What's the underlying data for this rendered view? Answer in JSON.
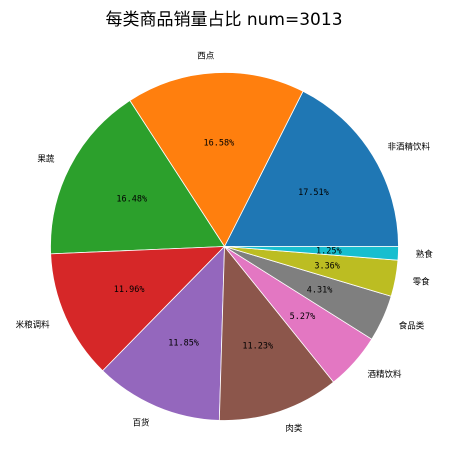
{
  "chart_data": {
    "type": "pie",
    "title": "每类商品销量占比  num=3013",
    "start_angle_deg": 0,
    "direction": "counterclockwise",
    "slices": [
      {
        "label": "非酒精饮料",
        "value": 17.51,
        "pct_text": "17.51%",
        "color": "#1f77b4"
      },
      {
        "label": "西点",
        "value": 16.58,
        "pct_text": "16.58%",
        "color": "#ff7f0e"
      },
      {
        "label": "果蔬",
        "value": 16.48,
        "pct_text": "16.48%",
        "color": "#2ca02c"
      },
      {
        "label": "米粮调料",
        "value": 11.96,
        "pct_text": "11.96%",
        "color": "#d62728"
      },
      {
        "label": "百货",
        "value": 11.85,
        "pct_text": "11.85%",
        "color": "#9467bd"
      },
      {
        "label": "肉类",
        "value": 11.23,
        "pct_text": "11.23%",
        "color": "#8c564b"
      },
      {
        "label": "酒精饮料",
        "value": 5.27,
        "pct_text": "5.27%",
        "color": "#e377c2"
      },
      {
        "label": "食品类",
        "value": 4.31,
        "pct_text": "4.31%",
        "color": "#7f7f7f"
      },
      {
        "label": "零食",
        "value": 3.36,
        "pct_text": "3.36%",
        "color": "#bcbd22"
      },
      {
        "label": "熟食",
        "value": 1.25,
        "pct_text": "1.25%",
        "color": "#17becf"
      }
    ]
  }
}
